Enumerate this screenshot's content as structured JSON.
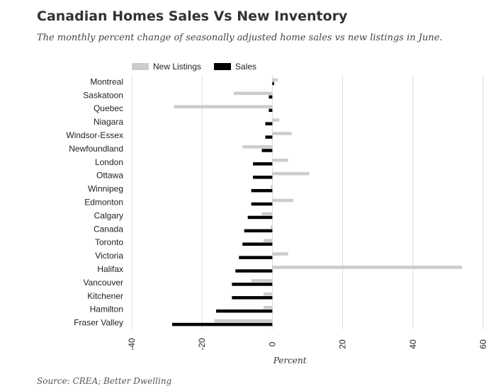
{
  "title": "Canadian Homes Sales Vs New Inventory",
  "subtitle": "The monthly percent change of seasonally adjusted home sales vs new listings in June.",
  "source": "Source: CREA; Better Dwelling",
  "colors": {
    "new_listings": "#cccccc",
    "sales": "#000000",
    "grid": "#dddddd"
  },
  "chart_data": {
    "type": "bar",
    "orientation": "horizontal",
    "xlabel": "Percent",
    "ylabel": "",
    "xlim": [
      -40,
      60
    ],
    "xticks": [
      -40,
      -20,
      0,
      20,
      40,
      60
    ],
    "grid": true,
    "legend": "top-left",
    "categories": [
      "Montreal",
      "Saskatoon",
      "Quebec",
      "Niagara",
      "Windsor-Essex",
      "Newfoundland",
      "London",
      "Ottawa",
      "Winnipeg",
      "Edmonton",
      "Calgary",
      "Canada",
      "Toronto",
      "Victoria",
      "Halifax",
      "Vancouver",
      "Kitchener",
      "Hamilton",
      "Fraser Valley"
    ],
    "series": [
      {
        "name": "New Listings",
        "values": [
          1.5,
          -11,
          -28,
          2,
          5.5,
          -8.5,
          4.5,
          10.5,
          -0.5,
          6,
          -3,
          -0.5,
          -2.5,
          4.5,
          54,
          -6,
          -2.5,
          -2.5,
          -16.5
        ]
      },
      {
        "name": "Sales",
        "values": [
          0.5,
          -1,
          -1,
          -2,
          -2,
          -3,
          -5.5,
          -5.5,
          -6,
          -6,
          -7,
          -8,
          -8.5,
          -9.5,
          -10.5,
          -11.5,
          -11.5,
          -16,
          -28.5
        ]
      }
    ]
  }
}
